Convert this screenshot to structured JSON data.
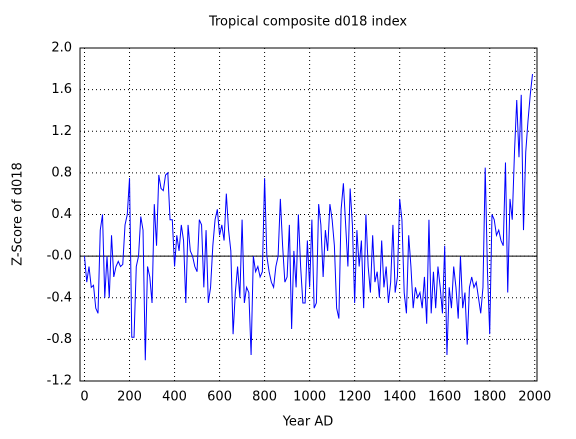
{
  "chart_data": {
    "type": "line",
    "title": "Tropical composite d018 index",
    "xlabel": "Year AD",
    "ylabel": "Z-Score of d018",
    "xlim": [
      -20,
      2010
    ],
    "ylim": [
      -1.2,
      2.0
    ],
    "xticks": [
      0,
      200,
      400,
      600,
      800,
      1000,
      1200,
      1400,
      1600,
      1800,
      2000
    ],
    "yticks": [
      -1.2,
      -0.8,
      -0.4,
      {
        "value": 0,
        "label": "-0.0"
      },
      0.4,
      0.8,
      1.2,
      1.6,
      {
        "value": 2.0,
        "label": "2.0"
      }
    ],
    "grid": true,
    "hline": 0,
    "x": [
      0,
      10,
      20,
      30,
      40,
      50,
      60,
      70,
      80,
      90,
      100,
      110,
      120,
      130,
      140,
      150,
      160,
      170,
      180,
      190,
      200,
      210,
      220,
      230,
      240,
      250,
      260,
      270,
      280,
      290,
      300,
      310,
      320,
      330,
      340,
      350,
      360,
      370,
      380,
      390,
      400,
      410,
      420,
      430,
      440,
      450,
      460,
      470,
      480,
      490,
      500,
      510,
      520,
      530,
      540,
      550,
      560,
      570,
      580,
      590,
      600,
      610,
      620,
      630,
      640,
      650,
      660,
      670,
      680,
      690,
      700,
      710,
      720,
      730,
      740,
      750,
      760,
      770,
      780,
      790,
      800,
      810,
      820,
      830,
      840,
      850,
      860,
      870,
      880,
      890,
      900,
      910,
      920,
      930,
      940,
      950,
      960,
      970,
      980,
      990,
      1000,
      1010,
      1020,
      1030,
      1040,
      1050,
      1060,
      1070,
      1080,
      1090,
      1100,
      1110,
      1120,
      1130,
      1140,
      1150,
      1160,
      1170,
      1180,
      1190,
      1200,
      1210,
      1220,
      1230,
      1240,
      1250,
      1260,
      1270,
      1280,
      1290,
      1300,
      1310,
      1320,
      1330,
      1340,
      1350,
      1360,
      1370,
      1380,
      1390,
      1400,
      1410,
      1420,
      1430,
      1440,
      1450,
      1460,
      1470,
      1480,
      1490,
      1500,
      1510,
      1520,
      1530,
      1540,
      1550,
      1560,
      1570,
      1580,
      1590,
      1600,
      1610,
      1620,
      1630,
      1640,
      1650,
      1660,
      1670,
      1680,
      1690,
      1700,
      1710,
      1720,
      1730,
      1740,
      1750,
      1760,
      1770,
      1780,
      1790,
      1800,
      1810,
      1820,
      1830,
      1840,
      1850,
      1860,
      1870,
      1880,
      1890,
      1900,
      1910,
      1920,
      1930,
      1940,
      1950,
      1960,
      1970,
      1980,
      1990
    ],
    "series": [
      {
        "color": "#0000ff",
        "values": [
          0.0,
          -0.25,
          -0.1,
          -0.3,
          -0.28,
          -0.5,
          -0.55,
          0.25,
          0.4,
          -0.4,
          0.0,
          -0.4,
          0.2,
          -0.2,
          -0.1,
          -0.05,
          -0.1,
          -0.08,
          0.3,
          0.4,
          0.75,
          -0.78,
          -0.78,
          -0.1,
          0.0,
          0.38,
          0.25,
          -1.0,
          -0.1,
          -0.2,
          -0.45,
          0.5,
          0.1,
          0.78,
          0.65,
          0.63,
          0.78,
          0.8,
          0.35,
          0.35,
          -0.1,
          0.2,
          0.05,
          0.3,
          0.15,
          -0.45,
          0.3,
          0.05,
          0.0,
          -0.1,
          -0.15,
          0.35,
          0.3,
          -0.3,
          0.25,
          -0.45,
          -0.3,
          0.1,
          0.35,
          0.45,
          0.2,
          0.3,
          0.15,
          0.6,
          0.25,
          0.05,
          -0.75,
          -0.35,
          -0.1,
          -0.4,
          0.35,
          -0.45,
          -0.3,
          -0.35,
          -0.95,
          0.0,
          -0.15,
          -0.1,
          -0.2,
          -0.15,
          0.75,
          0.0,
          -0.15,
          -0.25,
          -0.3,
          -0.1,
          0.0,
          0.55,
          0.1,
          -0.25,
          -0.2,
          0.3,
          -0.7,
          0.05,
          -0.3,
          0.4,
          -0.1,
          -0.45,
          -0.45,
          0.15,
          -0.3,
          0.35,
          -0.5,
          -0.45,
          0.5,
          0.3,
          -0.2,
          0.25,
          0.05,
          0.5,
          0.35,
          0.1,
          -0.5,
          -0.6,
          0.45,
          0.7,
          0.3,
          -0.1,
          0.65,
          0.3,
          -0.45,
          0.25,
          -0.1,
          0.15,
          -0.5,
          0.4,
          -0.1,
          -0.35,
          0.2,
          -0.25,
          -0.15,
          -0.4,
          0.15,
          -0.3,
          -0.1,
          -0.45,
          -0.25,
          0.3,
          -0.35,
          -0.2,
          0.55,
          0.35,
          -0.35,
          -0.55,
          0.2,
          -0.1,
          -0.5,
          -0.3,
          -0.4,
          -0.35,
          -0.5,
          -0.2,
          -0.65,
          0.35,
          -0.55,
          -0.15,
          -0.5,
          -0.1,
          -0.3,
          -0.55,
          0.1,
          -0.95,
          -0.3,
          -0.5,
          -0.1,
          -0.3,
          -0.6,
          0.0,
          -0.5,
          -0.35,
          -0.85,
          -0.3,
          -0.2,
          -0.3,
          -0.25,
          -0.4,
          -0.55,
          -0.3,
          0.85,
          -0.15,
          -0.75,
          0.4,
          0.35,
          0.2,
          0.25,
          0.15,
          0.1,
          0.9,
          -0.35,
          0.55,
          0.35,
          1.0,
          1.5,
          0.95,
          1.55,
          0.25,
          1.0,
          1.3,
          1.55,
          1.75
        ]
      }
    ]
  }
}
